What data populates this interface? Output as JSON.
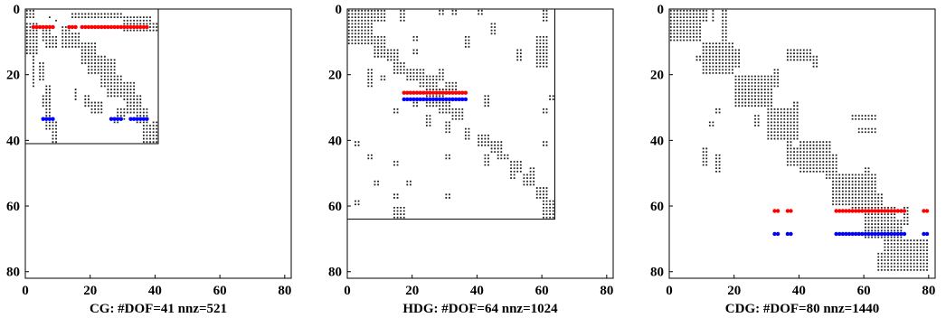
{
  "chart_data": [
    {
      "type": "scatter",
      "title": "CG: #DOF=41 nnz=521",
      "xlabel": "",
      "ylabel": "",
      "xlim": [
        0,
        82
      ],
      "ylim": [
        82,
        0
      ],
      "y_axis_inverted": true,
      "xticks": [
        "0",
        "20",
        "40",
        "60",
        "80"
      ],
      "yticks": [
        "0",
        "20",
        "40",
        "60",
        "80"
      ],
      "matrix_size": 41,
      "grid": false,
      "colors": {
        "pattern": "#222222",
        "row_a": "#ff0000",
        "row_b": "#0000ff",
        "frame": "#000000"
      },
      "highlight_rows": [
        {
          "row": 5,
          "color": "#ff0000",
          "col_ranges": [
            [
              2,
              8
            ],
            [
              13,
              15
            ],
            [
              17,
              37
            ]
          ]
        },
        {
          "row": 33,
          "color": "#0000ff",
          "col_ranges": [
            [
              5,
              8
            ],
            [
              26,
              29
            ],
            [
              32,
              37
            ]
          ]
        }
      ],
      "nonzero_blocks": [
        [
          0,
          0,
          3,
          3
        ],
        [
          1,
          5,
          1,
          6
        ],
        [
          2,
          7,
          3,
          8
        ],
        [
          3,
          9,
          4,
          10
        ],
        [
          0,
          10,
          0,
          37
        ],
        [
          1,
          14,
          3,
          30
        ],
        [
          2,
          30,
          7,
          39
        ],
        [
          4,
          35,
          7,
          42
        ],
        [
          4,
          0,
          14,
          4
        ],
        [
          6,
          5,
          10,
          8
        ],
        [
          8,
          6,
          12,
          10
        ],
        [
          5,
          11,
          12,
          14
        ],
        [
          7,
          14,
          12,
          17
        ],
        [
          10,
          17,
          17,
          22
        ],
        [
          14,
          19,
          20,
          25
        ],
        [
          15,
          23,
          24,
          28
        ],
        [
          20,
          25,
          27,
          30
        ],
        [
          22,
          30,
          28,
          34
        ],
        [
          26,
          31,
          32,
          36
        ],
        [
          30,
          34,
          35,
          38
        ],
        [
          35,
          36,
          41,
          41
        ],
        [
          34,
          39,
          41,
          42
        ],
        [
          14,
          2,
          24,
          3
        ],
        [
          16,
          4,
          22,
          6
        ],
        [
          23,
          6,
          37,
          8
        ],
        [
          26,
          5,
          30,
          6
        ],
        [
          24,
          15,
          28,
          16
        ],
        [
          26,
          18,
          30,
          20
        ],
        [
          28,
          20,
          32,
          24
        ],
        [
          34,
          8,
          41,
          10
        ],
        [
          30,
          28,
          34,
          31
        ],
        [
          33,
          27,
          35,
          29
        ]
      ]
    },
    {
      "type": "scatter",
      "title": "HDG: #DOF=64 nnz=1024",
      "xlabel": "",
      "ylabel": "",
      "xlim": [
        0,
        82
      ],
      "ylim": [
        82,
        0
      ],
      "y_axis_inverted": true,
      "xticks": [
        "0",
        "20",
        "40",
        "60",
        "80"
      ],
      "yticks": [
        "0",
        "20",
        "40",
        "60",
        "80"
      ],
      "matrix_size": 64,
      "grid": false,
      "colors": {
        "pattern": "#222222",
        "row_a": "#ff0000",
        "row_b": "#0000ff",
        "frame": "#000000"
      },
      "highlight_rows": [
        {
          "row": 25,
          "color": "#ff0000",
          "col_ranges": [
            [
              17,
              36
            ]
          ]
        },
        {
          "row": 27,
          "color": "#0000ff",
          "col_ranges": [
            [
              17,
              36
            ]
          ]
        }
      ],
      "nonzero_blocks": [
        [
          0,
          0,
          11,
          8
        ],
        [
          0,
          8,
          4,
          12
        ],
        [
          8,
          8,
          15,
          12
        ],
        [
          12,
          12,
          16,
          16
        ],
        [
          0,
          16,
          4,
          18
        ],
        [
          0,
          28,
          2,
          30
        ],
        [
          0,
          32,
          2,
          34
        ],
        [
          0,
          40,
          2,
          42
        ],
        [
          4,
          44,
          8,
          46
        ],
        [
          0,
          60,
          4,
          62
        ],
        [
          8,
          20,
          10,
          22
        ],
        [
          12,
          20,
          14,
          22
        ],
        [
          8,
          36,
          12,
          38
        ],
        [
          12,
          52,
          16,
          54
        ],
        [
          8,
          58,
          18,
          62
        ],
        [
          16,
          14,
          20,
          18
        ],
        [
          18,
          18,
          22,
          24
        ],
        [
          20,
          22,
          24,
          28
        ],
        [
          24,
          24,
          30,
          30
        ],
        [
          28,
          28,
          32,
          32
        ],
        [
          18,
          28,
          22,
          30
        ],
        [
          22,
          30,
          26,
          34
        ],
        [
          30,
          32,
          34,
          36
        ],
        [
          32,
          24,
          36,
          26
        ],
        [
          30,
          14,
          32,
          16
        ],
        [
          28,
          20,
          30,
          22
        ],
        [
          34,
          30,
          38,
          32
        ],
        [
          36,
          36,
          40,
          38
        ],
        [
          38,
          40,
          42,
          44
        ],
        [
          40,
          44,
          44,
          48
        ],
        [
          44,
          46,
          46,
          50
        ],
        [
          46,
          50,
          50,
          54
        ],
        [
          50,
          54,
          54,
          58
        ],
        [
          54,
          58,
          58,
          62
        ],
        [
          58,
          60,
          64,
          64
        ],
        [
          40,
          2,
          42,
          4
        ],
        [
          44,
          6,
          46,
          8
        ],
        [
          46,
          14,
          48,
          16
        ],
        [
          44,
          30,
          46,
          32
        ],
        [
          52,
          8,
          54,
          10
        ],
        [
          52,
          18,
          54,
          20
        ],
        [
          56,
          30,
          58,
          32
        ],
        [
          50,
          50,
          52,
          52
        ],
        [
          58,
          2,
          60,
          4
        ],
        [
          56,
          14,
          58,
          16
        ],
        [
          60,
          14,
          64,
          18
        ],
        [
          60,
          62,
          64,
          64
        ],
        [
          44,
          42,
          48,
          44
        ],
        [
          30,
          60,
          32,
          62
        ],
        [
          26,
          62,
          28,
          64
        ],
        [
          40,
          60,
          42,
          62
        ],
        [
          18,
          6,
          24,
          8
        ],
        [
          20,
          10,
          22,
          12
        ],
        [
          26,
          42,
          30,
          44
        ],
        [
          48,
          56,
          52,
          58
        ]
      ]
    },
    {
      "type": "scatter",
      "title": "CDG: #DOF=80 nnz=1440",
      "xlabel": "",
      "ylabel": "",
      "xlim": [
        0,
        82
      ],
      "ylim": [
        82,
        0
      ],
      "y_axis_inverted": true,
      "xticks": [
        "0",
        "20",
        "40",
        "60",
        "80"
      ],
      "yticks": [
        "0",
        "20",
        "40",
        "60",
        "80"
      ],
      "matrix_size": 80,
      "grid": false,
      "colors": {
        "pattern": "#222222",
        "row_a": "#ff0000",
        "row_b": "#0000ff",
        "frame": "#000000"
      },
      "highlight_rows": [
        {
          "row": 61,
          "color": "#ff0000",
          "col_ranges": [
            [
              32,
              33
            ],
            [
              36,
              37
            ],
            [
              51,
              72
            ],
            [
              78,
              79
            ]
          ]
        },
        {
          "row": 68,
          "color": "#0000ff",
          "col_ranges": [
            [
              32,
              33
            ],
            [
              36,
              37
            ],
            [
              51,
              72
            ],
            [
              78,
              79
            ]
          ]
        }
      ],
      "nonzero_blocks": [
        [
          0,
          0,
          10,
          10
        ],
        [
          0,
          10,
          4,
          12
        ],
        [
          0,
          13,
          4,
          14
        ],
        [
          0,
          16,
          12,
          18
        ],
        [
          10,
          10,
          20,
          20
        ],
        [
          12,
          20,
          18,
          22
        ],
        [
          20,
          20,
          30,
          30
        ],
        [
          20,
          30,
          30,
          32
        ],
        [
          18,
          32,
          24,
          34
        ],
        [
          30,
          30,
          40,
          40
        ],
        [
          28,
          38,
          34,
          40
        ],
        [
          32,
          26,
          36,
          28
        ],
        [
          40,
          40,
          50,
          50
        ],
        [
          36,
          36,
          42,
          38
        ],
        [
          42,
          36,
          48,
          40
        ],
        [
          44,
          48,
          52,
          52
        ],
        [
          50,
          50,
          60,
          60
        ],
        [
          48,
          60,
          60,
          62
        ],
        [
          50,
          56,
          62,
          64
        ],
        [
          56,
          60,
          64,
          66
        ],
        [
          60,
          60,
          70,
          70
        ],
        [
          64,
          66,
          76,
          72
        ],
        [
          70,
          70,
          80,
          80
        ],
        [
          60,
          72,
          66,
          74
        ],
        [
          74,
          64,
          80,
          72
        ],
        [
          14,
          8,
          16,
          10
        ],
        [
          16,
          14,
          18,
          16
        ],
        [
          30,
          14,
          32,
          16
        ],
        [
          34,
          12,
          36,
          14
        ],
        [
          12,
          36,
          16,
          44
        ],
        [
          14,
          44,
          18,
          46
        ],
        [
          32,
          56,
          34,
          64
        ],
        [
          36,
          58,
          38,
          64
        ],
        [
          42,
          10,
          48,
          12
        ],
        [
          44,
          14,
          50,
          16
        ],
        [
          40,
          44,
          44,
          48
        ]
      ]
    }
  ]
}
